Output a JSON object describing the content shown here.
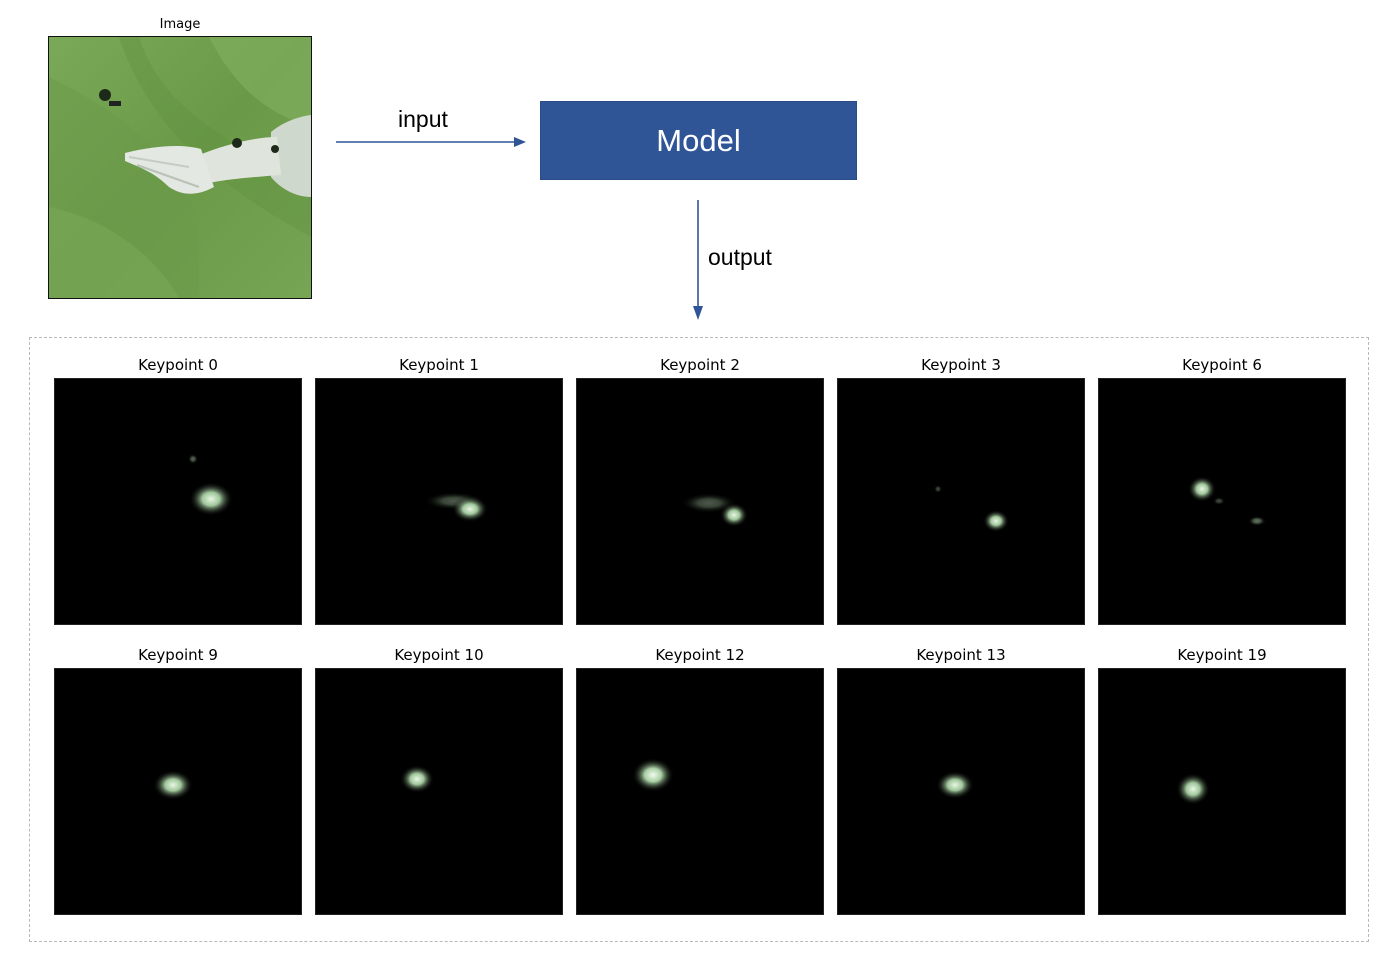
{
  "input": {
    "title": "Image",
    "colors": {
      "background": "#6e9e4e",
      "hand": "#e3e8e3"
    }
  },
  "arrows": {
    "input_label": "input",
    "output_label": "output",
    "color": "#2f5597"
  },
  "model": {
    "label": "Model",
    "color": "#2f5597"
  },
  "heatmap_color": "#d9f2d6",
  "heatmaps": [
    {
      "title": "Keypoint 0"
    },
    {
      "title": "Keypoint 1"
    },
    {
      "title": "Keypoint 2"
    },
    {
      "title": "Keypoint 3"
    },
    {
      "title": "Keypoint 6"
    },
    {
      "title": "Keypoint 9"
    },
    {
      "title": "Keypoint 10"
    },
    {
      "title": "Keypoint 12"
    },
    {
      "title": "Keypoint 13"
    },
    {
      "title": "Keypoint 19"
    }
  ]
}
